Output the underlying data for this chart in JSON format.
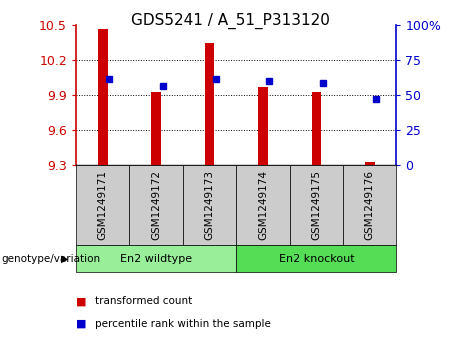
{
  "title": "GDS5241 / A_51_P313120",
  "samples": [
    "GSM1249171",
    "GSM1249172",
    "GSM1249173",
    "GSM1249174",
    "GSM1249175",
    "GSM1249176"
  ],
  "transformed_counts": [
    10.47,
    9.93,
    10.35,
    9.97,
    9.93,
    9.33
  ],
  "percentile_ranks": [
    62,
    57,
    62,
    60,
    59,
    47
  ],
  "y_min": 9.3,
  "y_max": 10.5,
  "y_ticks": [
    9.3,
    9.6,
    9.9,
    10.2,
    10.5
  ],
  "right_y_ticks": [
    0,
    25,
    50,
    75,
    100
  ],
  "right_y_labels": [
    "0",
    "25",
    "50",
    "75",
    "100%"
  ],
  "bar_color": "#cc0000",
  "dot_color": "#0000cc",
  "groups": [
    {
      "label": "En2 wildtype",
      "indices": [
        0,
        1,
        2
      ],
      "color": "#99ee99"
    },
    {
      "label": "En2 knockout",
      "indices": [
        3,
        4,
        5
      ],
      "color": "#55dd55"
    }
  ],
  "group_label_prefix": "genotype/variation",
  "legend_items": [
    {
      "label": "transformed count",
      "color": "#cc0000"
    },
    {
      "label": "percentile rank within the sample",
      "color": "#0000cc"
    }
  ],
  "tick_label_area_color": "#cccccc",
  "title_fontsize": 11,
  "tick_fontsize": 9,
  "bar_width": 0.18
}
